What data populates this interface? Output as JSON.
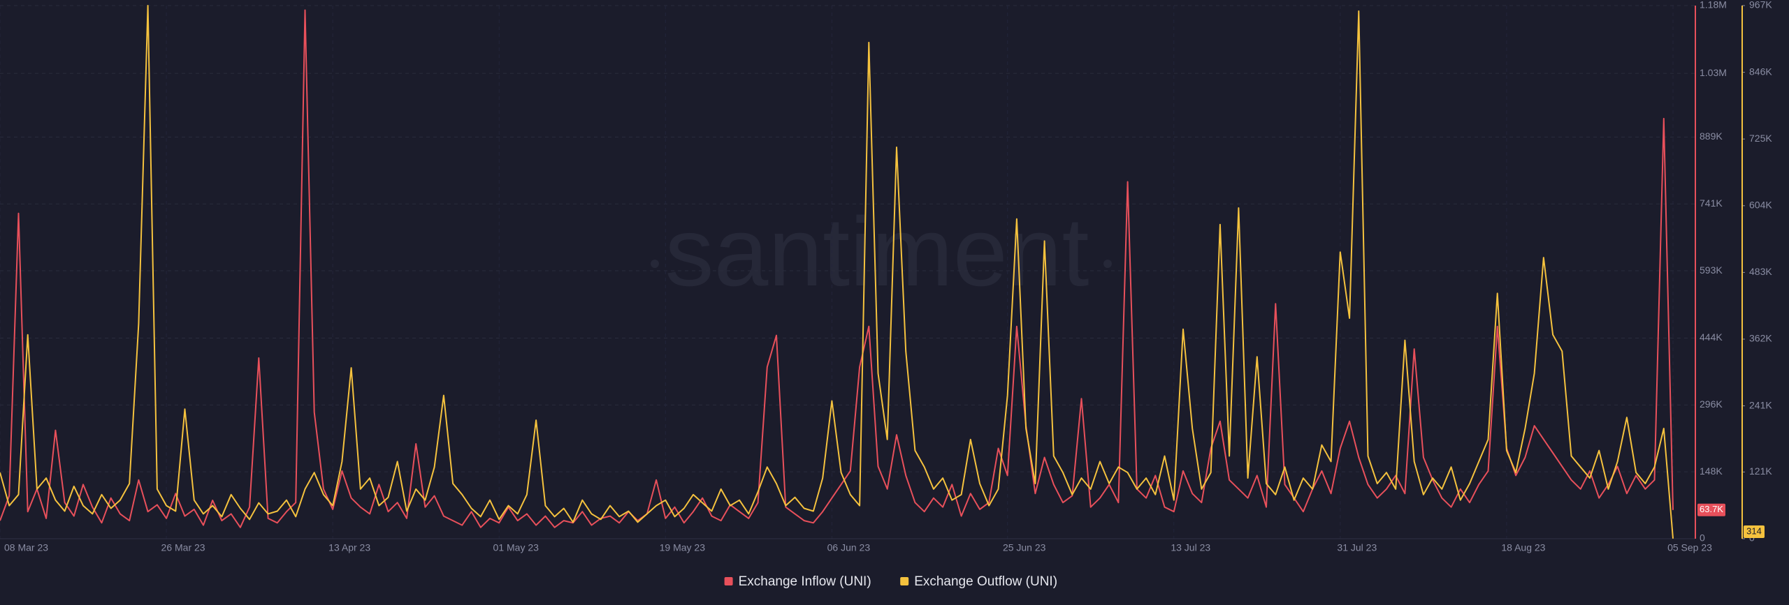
{
  "chart_data": {
    "type": "line",
    "watermark": "santiment",
    "x": [
      "2023-03-08",
      "2023-03-09",
      "2023-03-10",
      "2023-03-11",
      "2023-03-12",
      "2023-03-13",
      "2023-03-14",
      "2023-03-15",
      "2023-03-16",
      "2023-03-17",
      "2023-03-18",
      "2023-03-19",
      "2023-03-20",
      "2023-03-21",
      "2023-03-22",
      "2023-03-23",
      "2023-03-24",
      "2023-03-25",
      "2023-03-26",
      "2023-03-27",
      "2023-03-28",
      "2023-03-29",
      "2023-03-30",
      "2023-03-31",
      "2023-04-01",
      "2023-04-02",
      "2023-04-03",
      "2023-04-04",
      "2023-04-05",
      "2023-04-06",
      "2023-04-07",
      "2023-04-08",
      "2023-04-09",
      "2023-04-10",
      "2023-04-11",
      "2023-04-12",
      "2023-04-13",
      "2023-04-14",
      "2023-04-15",
      "2023-04-16",
      "2023-04-17",
      "2023-04-18",
      "2023-04-19",
      "2023-04-20",
      "2023-04-21",
      "2023-04-22",
      "2023-04-23",
      "2023-04-24",
      "2023-04-25",
      "2023-04-26",
      "2023-04-27",
      "2023-04-28",
      "2023-04-29",
      "2023-04-30",
      "2023-05-01",
      "2023-05-02",
      "2023-05-03",
      "2023-05-04",
      "2023-05-05",
      "2023-05-06",
      "2023-05-07",
      "2023-05-08",
      "2023-05-09",
      "2023-05-10",
      "2023-05-11",
      "2023-05-12",
      "2023-05-13",
      "2023-05-14",
      "2023-05-15",
      "2023-05-16",
      "2023-05-17",
      "2023-05-18",
      "2023-05-19",
      "2023-05-20",
      "2023-05-21",
      "2023-05-22",
      "2023-05-23",
      "2023-05-24",
      "2023-05-25",
      "2023-05-26",
      "2023-05-27",
      "2023-05-28",
      "2023-05-29",
      "2023-05-30",
      "2023-05-31",
      "2023-06-01",
      "2023-06-02",
      "2023-06-03",
      "2023-06-04",
      "2023-06-05",
      "2023-06-06",
      "2023-06-07",
      "2023-06-08",
      "2023-06-09",
      "2023-06-10",
      "2023-06-11",
      "2023-06-12",
      "2023-06-13",
      "2023-06-14",
      "2023-06-15",
      "2023-06-16",
      "2023-06-17",
      "2023-06-18",
      "2023-06-19",
      "2023-06-20",
      "2023-06-21",
      "2023-06-22",
      "2023-06-23",
      "2023-06-24",
      "2023-06-25",
      "2023-06-26",
      "2023-06-27",
      "2023-06-28",
      "2023-06-29",
      "2023-06-30",
      "2023-07-01",
      "2023-07-02",
      "2023-07-03",
      "2023-07-04",
      "2023-07-05",
      "2023-07-06",
      "2023-07-07",
      "2023-07-08",
      "2023-07-09",
      "2023-07-10",
      "2023-07-11",
      "2023-07-12",
      "2023-07-13",
      "2023-07-14",
      "2023-07-15",
      "2023-07-16",
      "2023-07-17",
      "2023-07-18",
      "2023-07-19",
      "2023-07-20",
      "2023-07-21",
      "2023-07-22",
      "2023-07-23",
      "2023-07-24",
      "2023-07-25",
      "2023-07-26",
      "2023-07-27",
      "2023-07-28",
      "2023-07-29",
      "2023-07-30",
      "2023-07-31",
      "2023-08-01",
      "2023-08-02",
      "2023-08-03",
      "2023-08-04",
      "2023-08-05",
      "2023-08-06",
      "2023-08-07",
      "2023-08-08",
      "2023-08-09",
      "2023-08-10",
      "2023-08-11",
      "2023-08-12",
      "2023-08-13",
      "2023-08-14",
      "2023-08-15",
      "2023-08-16",
      "2023-08-17",
      "2023-08-18",
      "2023-08-19",
      "2023-08-20",
      "2023-08-21",
      "2023-08-22",
      "2023-08-23",
      "2023-08-24",
      "2023-08-25",
      "2023-08-26",
      "2023-08-27",
      "2023-08-28",
      "2023-08-29",
      "2023-08-30",
      "2023-08-31",
      "2023-09-01",
      "2023-09-02",
      "2023-09-03",
      "2023-09-04",
      "2023-09-05"
    ],
    "xlim": [
      "2023-03-08",
      "2023-09-05"
    ],
    "xticks": [
      {
        "value": "2023-03-08",
        "label": "08 Mar 23"
      },
      {
        "value": "2023-03-26",
        "label": "26 Mar 23"
      },
      {
        "value": "2023-04-13",
        "label": "13 Apr 23"
      },
      {
        "value": "2023-05-01",
        "label": "01 May 23"
      },
      {
        "value": "2023-05-19",
        "label": "19 May 23"
      },
      {
        "value": "2023-06-06",
        "label": "06 Jun 23"
      },
      {
        "value": "2023-06-25",
        "label": "25 Jun 23"
      },
      {
        "value": "2023-07-13",
        "label": "13 Jul 23"
      },
      {
        "value": "2023-07-31",
        "label": "31 Jul 23"
      },
      {
        "value": "2023-08-18",
        "label": "18 Aug 23"
      },
      {
        "value": "2023-09-05",
        "label": "05 Sep 23"
      }
    ],
    "ylim": [
      0,
      1180000
    ],
    "yticks": [
      0,
      {
        "value": 148000,
        "label": "148K"
      },
      {
        "value": 296000,
        "label": "296K"
      },
      {
        "value": 444000,
        "label": "444K"
      },
      {
        "value": 593000,
        "label": "593K"
      },
      {
        "value": 741000,
        "label": "741K"
      },
      {
        "value": 889000,
        "label": "889K"
      },
      {
        "value": 1030000,
        "label": "1.03M"
      },
      {
        "value": 1180000,
        "label": "1.18M"
      }
    ],
    "y2lim": [
      0,
      967000
    ],
    "y2ticks": [
      0,
      {
        "value": 121000,
        "label": "121K"
      },
      {
        "value": 241000,
        "label": "241K"
      },
      {
        "value": 362000,
        "label": "362K"
      },
      {
        "value": 483000,
        "label": "483K"
      },
      {
        "value": 604000,
        "label": "604K"
      },
      {
        "value": 725000,
        "label": "725K"
      },
      {
        "value": 846000,
        "label": "846K"
      },
      {
        "value": 967000,
        "label": "967K"
      }
    ],
    "grid": true,
    "legend": "bottom",
    "series": [
      {
        "name": "Exchange Inflow (UNI)",
        "color": "#e8505b",
        "axis": "y",
        "badge": "63.7K",
        "values": [
          40000,
          95000,
          720000,
          60000,
          110000,
          45000,
          240000,
          80000,
          50000,
          120000,
          70000,
          35000,
          90000,
          55000,
          40000,
          130000,
          60000,
          75000,
          45000,
          100000,
          50000,
          65000,
          30000,
          85000,
          40000,
          55000,
          25000,
          70000,
          400000,
          45000,
          35000,
          60000,
          80000,
          1170000,
          280000,
          110000,
          65000,
          150000,
          90000,
          70000,
          55000,
          120000,
          60000,
          80000,
          45000,
          210000,
          70000,
          95000,
          50000,
          40000,
          30000,
          60000,
          25000,
          45000,
          35000,
          70000,
          40000,
          55000,
          30000,
          50000,
          25000,
          40000,
          35000,
          60000,
          30000,
          45000,
          50000,
          35000,
          60000,
          40000,
          55000,
          130000,
          45000,
          70000,
          35000,
          60000,
          90000,
          50000,
          40000,
          75000,
          60000,
          45000,
          80000,
          380000,
          450000,
          70000,
          55000,
          40000,
          35000,
          60000,
          90000,
          120000,
          150000,
          380000,
          470000,
          160000,
          110000,
          230000,
          140000,
          80000,
          60000,
          90000,
          70000,
          120000,
          50000,
          100000,
          65000,
          80000,
          200000,
          140000,
          470000,
          250000,
          100000,
          180000,
          120000,
          80000,
          95000,
          310000,
          70000,
          90000,
          120000,
          80000,
          790000,
          110000,
          90000,
          140000,
          70000,
          60000,
          150000,
          100000,
          80000,
          200000,
          260000,
          130000,
          110000,
          90000,
          140000,
          70000,
          520000,
          120000,
          90000,
          60000,
          110000,
          150000,
          100000,
          200000,
          260000,
          180000,
          120000,
          90000,
          110000,
          140000,
          100000,
          420000,
          180000,
          130000,
          90000,
          70000,
          110000,
          80000,
          120000,
          150000,
          470000,
          200000,
          140000,
          180000,
          250000,
          220000,
          190000,
          160000,
          130000,
          110000,
          150000,
          90000,
          120000,
          160000,
          100000,
          140000,
          110000,
          130000,
          930000,
          63700
        ]
      },
      {
        "name": "Exchange Outflow (UNI)",
        "color": "#f5c23e",
        "axis": "y2",
        "badge": "314",
        "values": [
          120000,
          60000,
          80000,
          370000,
          90000,
          110000,
          70000,
          50000,
          95000,
          60000,
          45000,
          80000,
          55000,
          70000,
          100000,
          390000,
          967000,
          90000,
          60000,
          50000,
          235000,
          70000,
          45000,
          60000,
          40000,
          80000,
          55000,
          35000,
          65000,
          45000,
          50000,
          70000,
          40000,
          90000,
          120000,
          80000,
          60000,
          140000,
          310000,
          90000,
          110000,
          60000,
          75000,
          140000,
          50000,
          90000,
          70000,
          130000,
          260000,
          100000,
          80000,
          55000,
          40000,
          70000,
          35000,
          60000,
          45000,
          80000,
          215000,
          60000,
          40000,
          55000,
          30000,
          70000,
          45000,
          35000,
          60000,
          40000,
          50000,
          30000,
          45000,
          60000,
          70000,
          40000,
          55000,
          80000,
          65000,
          50000,
          90000,
          60000,
          70000,
          45000,
          85000,
          130000,
          100000,
          60000,
          75000,
          55000,
          50000,
          110000,
          250000,
          120000,
          80000,
          60000,
          900000,
          300000,
          180000,
          710000,
          340000,
          160000,
          130000,
          90000,
          110000,
          70000,
          80000,
          180000,
          100000,
          60000,
          90000,
          260000,
          580000,
          200000,
          100000,
          540000,
          150000,
          120000,
          80000,
          110000,
          90000,
          140000,
          100000,
          130000,
          120000,
          90000,
          110000,
          80000,
          150000,
          70000,
          380000,
          200000,
          90000,
          120000,
          570000,
          150000,
          600000,
          110000,
          330000,
          100000,
          80000,
          130000,
          70000,
          110000,
          90000,
          170000,
          140000,
          520000,
          400000,
          957000,
          150000,
          100000,
          120000,
          90000,
          360000,
          140000,
          80000,
          110000,
          90000,
          130000,
          70000,
          100000,
          140000,
          180000,
          445000,
          160000,
          120000,
          200000,
          300000,
          510000,
          370000,
          340000,
          150000,
          130000,
          110000,
          160000,
          90000,
          140000,
          220000,
          120000,
          100000,
          130000,
          200000,
          314
        ]
      }
    ]
  }
}
